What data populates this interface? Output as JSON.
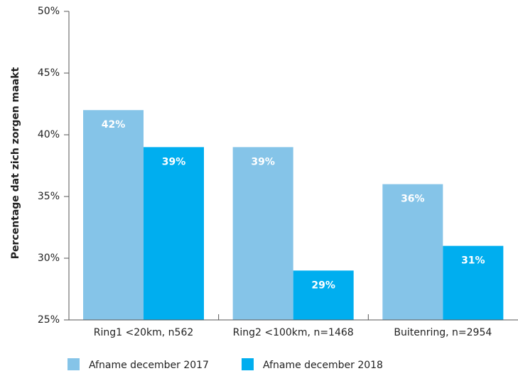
{
  "chart_data": {
    "type": "bar",
    "y_label": "Percentage dat zich zorgen maakt",
    "categories": [
      "Ring1 <20km, n562",
      "Ring2 <100km, n=1468",
      "Buitenring, n=2954"
    ],
    "series": [
      {
        "name": "Afname december 2017",
        "color": "#85c4e8",
        "values": [
          42,
          39,
          36
        ],
        "value_labels": [
          "42%",
          "39%",
          "36%"
        ]
      },
      {
        "name": "Afname december 2018",
        "color": "#00aeef",
        "values": [
          39,
          29,
          31
        ],
        "value_labels": [
          "39%",
          "29%",
          "31%"
        ]
      }
    ],
    "ylim": [
      25,
      50
    ],
    "yticks": [
      {
        "value": 25,
        "label": "25%"
      },
      {
        "value": 30,
        "label": "30%"
      },
      {
        "value": 35,
        "label": "35%"
      },
      {
        "value": 40,
        "label": "40%"
      },
      {
        "value": 45,
        "label": "45%"
      },
      {
        "value": 50,
        "label": "50%"
      }
    ],
    "legend": "bottom"
  }
}
